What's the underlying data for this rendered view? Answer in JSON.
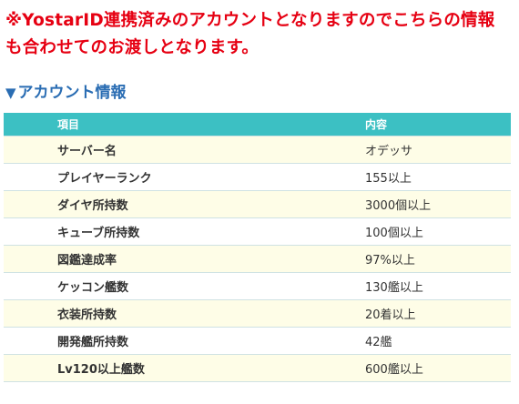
{
  "notice": {
    "text": "※YostarID連携済みのアカウントとなりますのでこちらの情報も合わせてのお渡しとなります。",
    "color": "#e60012"
  },
  "section": {
    "icon": "triangle-down-icon",
    "title": "アカウント情報",
    "color": "#2a6db3"
  },
  "table": {
    "header_color": "#3cc0c3",
    "headers": [
      "項目",
      "内容"
    ],
    "rows": [
      {
        "label": "サーバー名",
        "value": "オデッサ"
      },
      {
        "label": "プレイヤーランク",
        "value": "155以上"
      },
      {
        "label": "ダイヤ所持数",
        "value": "3000個以上"
      },
      {
        "label": "キューブ所持数",
        "value": "100個以上"
      },
      {
        "label": "図鑑達成率",
        "value": "97%以上"
      },
      {
        "label": "ケッコン艦数",
        "value": "130艦以上"
      },
      {
        "label": "衣装所持数",
        "value": "20着以上"
      },
      {
        "label": "開発艦所持数",
        "value": "42艦"
      },
      {
        "label": "Lv120以上艦数",
        "value": "600艦以上"
      }
    ]
  }
}
